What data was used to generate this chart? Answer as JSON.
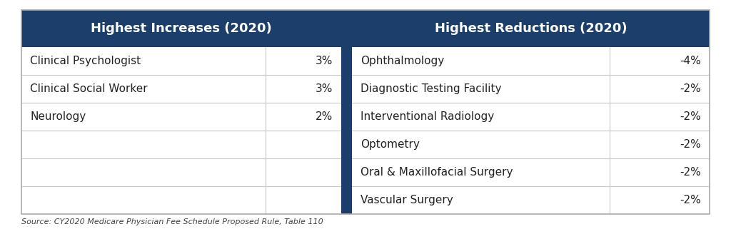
{
  "header_left": "Highest Increases (2020)",
  "header_right": "Highest Reductions (2020)",
  "header_bg_color": "#1b3f6a",
  "header_text_color": "#ffffff",
  "increases": [
    [
      "Clinical Psychologist",
      "3%"
    ],
    [
      "Clinical Social Worker",
      "3%"
    ],
    [
      "Neurology",
      "2%"
    ],
    [
      "",
      ""
    ],
    [
      "",
      ""
    ],
    [
      "",
      ""
    ]
  ],
  "reductions": [
    [
      "Ophthalmology",
      "-4%"
    ],
    [
      "Diagnostic Testing Facility",
      "-2%"
    ],
    [
      "Interventional Radiology",
      "-2%"
    ],
    [
      "Optometry",
      "-2%"
    ],
    [
      "Oral & Maxillofacial Surgery",
      "-2%"
    ],
    [
      "Vascular Surgery",
      "-2%"
    ]
  ],
  "source_text": "Source: CY2020 Medicare Physician Fee Schedule Proposed Rule, Table 110",
  "row_line_color": "#c8c8c8",
  "divider_color": "#1b3f6a",
  "text_color": "#222222",
  "outer_border_color": "#aaaaaa",
  "fig_bg": "#ffffff"
}
